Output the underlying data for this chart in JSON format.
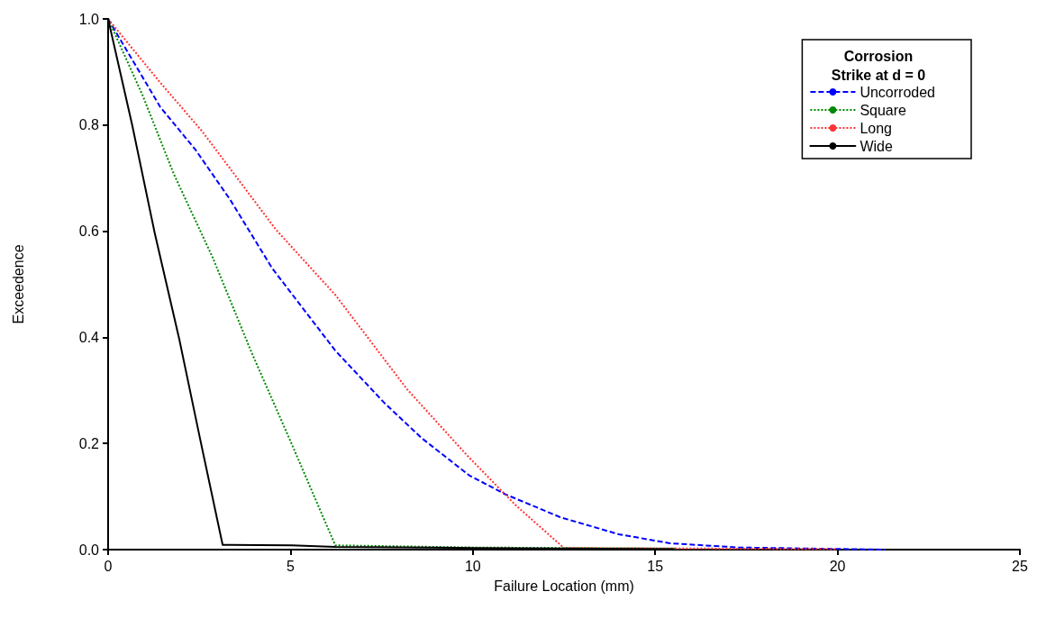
{
  "chart_data": {
    "type": "line",
    "xlabel": "Failure Location (mm)",
    "ylabel": "Exceedence",
    "legend_title": "Corrosion Strike at d = 0",
    "xlim": [
      0,
      25
    ],
    "xticks": [
      0,
      5,
      10,
      15,
      20,
      25
    ],
    "ylim": [
      0,
      1
    ],
    "yticks": [
      {
        "value": 0,
        "label": "0.0"
      },
      {
        "value": 0.2,
        "label": "0.2"
      },
      {
        "value": 0.4,
        "label": "0.4"
      },
      {
        "value": 0.6,
        "label": "0.6"
      },
      {
        "value": 0.8,
        "label": "0.8"
      },
      {
        "value": 1,
        "label": "1.0"
      }
    ],
    "grid": false,
    "legend": "top right",
    "marker": "none",
    "series": [
      {
        "name": "Uncorroded",
        "color": "#0000ff",
        "line_style": "dashed",
        "x": [
          0,
          1.43,
          2.39,
          3.35,
          4.5,
          6.23,
          7.58,
          8.6,
          9.9,
          10.9,
          12.4,
          14.0,
          15.4,
          17.3,
          21.3
        ],
        "values": [
          1,
          0.834,
          0.754,
          0.659,
          0.53,
          0.375,
          0.276,
          0.21,
          0.14,
          0.104,
          0.061,
          0.029,
          0.012,
          0.004,
          0
        ]
      },
      {
        "name": "Square",
        "color": "#008800",
        "line_style": "dotted",
        "x": [
          0,
          0.94,
          1.8,
          2.87,
          3.93,
          4.99,
          6.23,
          10,
          15.6
        ],
        "values": [
          1,
          0.857,
          0.708,
          0.55,
          0.372,
          0.206,
          0.008,
          0.004,
          0.002
        ]
      },
      {
        "name": "Long",
        "color": "#ff3333",
        "line_style": "dotted",
        "x": [
          0,
          1.43,
          2.58,
          4.6,
          6.23,
          8.2,
          9.85,
          11.17,
          12.5,
          20
        ],
        "values": [
          1,
          0.88,
          0.788,
          0.603,
          0.48,
          0.302,
          0.177,
          0.084,
          0.003,
          0.001
        ]
      },
      {
        "name": "Wide",
        "color": "#000000",
        "line_style": "solid",
        "x": [
          0,
          0.66,
          1.28,
          1.95,
          2.53,
          3.14,
          5.03,
          6.23,
          10,
          15.5
        ],
        "values": [
          1,
          0.8,
          0.596,
          0.397,
          0.206,
          0.009,
          0.008,
          0.005,
          0.003,
          0.001
        ]
      }
    ]
  }
}
